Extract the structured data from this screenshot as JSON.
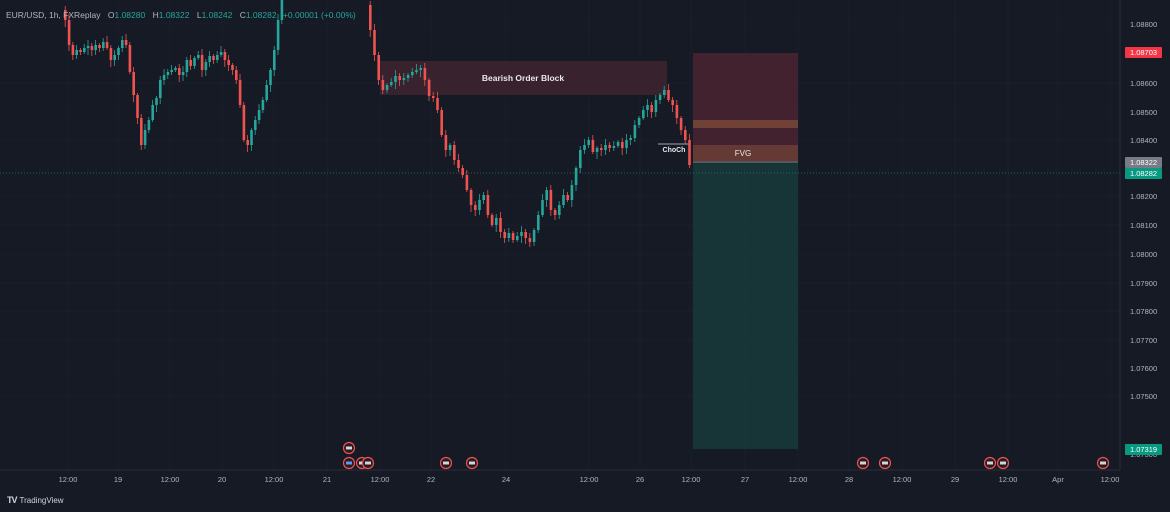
{
  "header": {
    "symbol": "EUR/USD, 1h, FXReplay",
    "o_key": "O",
    "o_val": "1.08280",
    "h_key": "H",
    "h_val": "1.08322",
    "l_key": "L",
    "l_val": "1.08242",
    "c_key": "C",
    "c_val": "1.08282",
    "change": "+0.00001 (+0.00%)"
  },
  "price_axis": {
    "ticks": [
      "1.08800",
      "1.08600",
      "1.08500",
      "1.08400",
      "1.08200",
      "1.08100",
      "1.08000",
      "1.07900",
      "1.07800",
      "1.07700",
      "1.07600",
      "1.07500"
    ],
    "partial_tick": "1.07300",
    "tags": {
      "stop": "1.08703",
      "high": "1.08322",
      "current": "1.08282",
      "target": "1.07319"
    }
  },
  "time_axis": {
    "labels": [
      "12:00",
      "19",
      "12:00",
      "20",
      "12:00",
      "21",
      "12:00",
      "22",
      "24",
      "12:00",
      "26",
      "12:00",
      "27",
      "12:00",
      "28",
      "12:00",
      "29",
      "12:00",
      "Apr",
      "12:00"
    ]
  },
  "annotations": {
    "order_block": "Bearish Order Block",
    "choch": "ChoCh",
    "fvg": "FVG"
  },
  "colors": {
    "bull": "#26a69a",
    "bear": "#ef5350",
    "background": "#161a25",
    "grid": "#1f2431",
    "stop_zone": "#4a2530",
    "target_zone": "#17393a",
    "stop_tag": "#f23645",
    "target_tag": "#089981",
    "high_tag": "#787b86"
  },
  "icons": [
    "flag-event-icon"
  ],
  "brand": {
    "name": "TradingView"
  }
}
